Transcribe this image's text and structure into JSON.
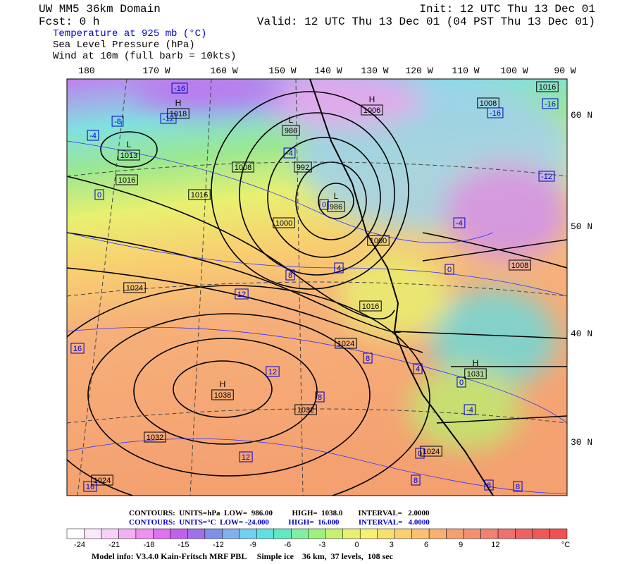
{
  "header": {
    "title": "UW MM5 36km Domain",
    "init": "Init: 12 UTC Thu 13 Dec 01",
    "fcst": "Fcst:   0 h",
    "valid": "Valid: 12 UTC Thu 13 Dec 01 (04 PST Thu 13 Dec 01)",
    "fields": [
      "Temperature at 925 mb (°C)",
      "Sea Level Pressure (hPa)",
      "Wind at 10m (full barb = 10kts)"
    ]
  },
  "longitudes": [
    "180",
    "170 W",
    "160 W",
    "150 W",
    "140 W",
    "130 W",
    "120 W",
    "110 W",
    "100 W",
    "90 W"
  ],
  "latitudes": [
    "60 N",
    "50 N",
    "40 N",
    "30 N"
  ],
  "pressure_labels": [
    "1008",
    "992",
    "1016",
    "1016",
    "1000",
    "1000",
    "1024",
    "1016",
    "1024",
    "1032",
    "1032",
    "1024",
    "1024",
    "1008",
    "1016",
    "1008"
  ],
  "temperature_labels": [
    "-16",
    "-8",
    "-12",
    "-4",
    "-4",
    "0",
    "0",
    "-4",
    "-16",
    "-16",
    "-12",
    "8",
    "4",
    "12",
    "0",
    "16",
    "8",
    "12",
    "4",
    "0",
    "8",
    "-4",
    "12",
    "0",
    "16",
    "8",
    "8",
    "8"
  ],
  "centers": [
    {
      "type": "H",
      "value": "1018"
    },
    {
      "type": "L",
      "value": "1013"
    },
    {
      "type": "L",
      "value": "986"
    },
    {
      "type": "L",
      "value": "986"
    },
    {
      "type": "H",
      "value": "1006"
    },
    {
      "type": "H",
      "value": "1038"
    },
    {
      "type": "H",
      "value": "1031"
    }
  ],
  "footer": {
    "slp_contours": "CONTOURS:  UNITS=hPa  LOW=  986.00          HIGH=  1038.0        INTERVAL=   2.0000",
    "temp_contours": "CONTOURS:  UNITS=°C  LOW= -24.000          HIGH=  16.000          INTERVAL=   4.0000",
    "model_info": "Model info: V3.4.0 Kain-Fritsch MRF PBL     Simple ice    36 km,  37 levels,  108 sec"
  },
  "colorbar": {
    "labels": [
      "-24",
      "-21",
      "-18",
      "-15",
      "-12",
      "-9",
      "-6",
      "-3",
      "0",
      "3",
      "6",
      "9",
      "12"
    ],
    "unit": "°C"
  }
}
